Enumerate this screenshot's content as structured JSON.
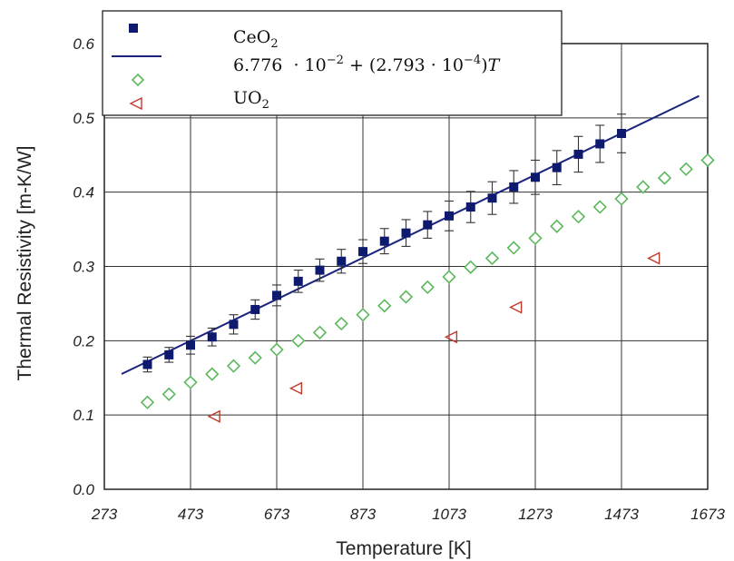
{
  "chart_data": {
    "type": "scatter",
    "title": "",
    "xlabel": "Temperature [K]",
    "ylabel": "Thermal Resistivity [m-K/W]",
    "xlim": [
      273,
      1673
    ],
    "ylim": [
      0.0,
      0.6
    ],
    "x_ticks": [
      "273",
      "473",
      "673",
      "873",
      "1073",
      "1273",
      "1473",
      "1673"
    ],
    "y_ticks": [
      "0.0",
      "0.1",
      "0.2",
      "0.3",
      "0.4",
      "0.5",
      "0.6"
    ],
    "grid": true,
    "legend_position": "top-left",
    "legend": {
      "ceo2_base": "CeO",
      "ceo2_sub": "2",
      "fit_parts": [
        "6.776 ",
        " · 10",
        "−2",
        " + (2.793 · 10",
        "−4",
        ")",
        "T"
      ],
      "uo2_base": "UO",
      "uo2_sub": "2"
    },
    "series": [
      {
        "name": "CeO2",
        "marker": "square",
        "color": "#0d1a6e",
        "x": [
          373,
          423,
          473,
          523,
          573,
          623,
          673,
          723,
          773,
          823,
          873,
          923,
          973,
          1023,
          1073,
          1123,
          1173,
          1223,
          1273,
          1323,
          1373,
          1423,
          1473
        ],
        "y": [
          0.168,
          0.181,
          0.194,
          0.205,
          0.222,
          0.242,
          0.261,
          0.28,
          0.295,
          0.307,
          0.32,
          0.334,
          0.345,
          0.356,
          0.368,
          0.38,
          0.392,
          0.407,
          0.42,
          0.433,
          0.451,
          0.465,
          0.479
        ],
        "error": [
          0.01,
          0.01,
          0.012,
          0.012,
          0.013,
          0.013,
          0.014,
          0.015,
          0.015,
          0.016,
          0.016,
          0.017,
          0.018,
          0.018,
          0.02,
          0.021,
          0.022,
          0.022,
          0.023,
          0.023,
          0.024,
          0.025,
          0.026
        ]
      },
      {
        "name": "6.776 · 10−2 + (2.793 · 10−4)T",
        "marker": "line",
        "color": "#1a237e",
        "x": [
          313,
          1653
        ],
        "y": [
          0.1552,
          0.5295
        ]
      },
      {
        "name": "",
        "marker": "diamond",
        "color": "#5cb85c",
        "x": [
          373,
          423,
          473,
          523,
          573,
          623,
          673,
          723,
          773,
          823,
          873,
          923,
          973,
          1023,
          1073,
          1123,
          1173,
          1223,
          1273,
          1323,
          1373,
          1423,
          1473,
          1523,
          1573,
          1623,
          1673
        ],
        "y": [
          0.117,
          0.128,
          0.144,
          0.155,
          0.166,
          0.177,
          0.188,
          0.2,
          0.211,
          0.223,
          0.235,
          0.247,
          0.259,
          0.272,
          0.286,
          0.299,
          0.311,
          0.325,
          0.338,
          0.354,
          0.367,
          0.38,
          0.391,
          0.407,
          0.419,
          0.431,
          0.443
        ]
      },
      {
        "name": "UO2",
        "marker": "triangle-left",
        "color": "#c0392b",
        "x": [
          528,
          718,
          1078,
          1228,
          1548
        ],
        "y": [
          0.098,
          0.136,
          0.205,
          0.245,
          0.311
        ]
      }
    ]
  }
}
